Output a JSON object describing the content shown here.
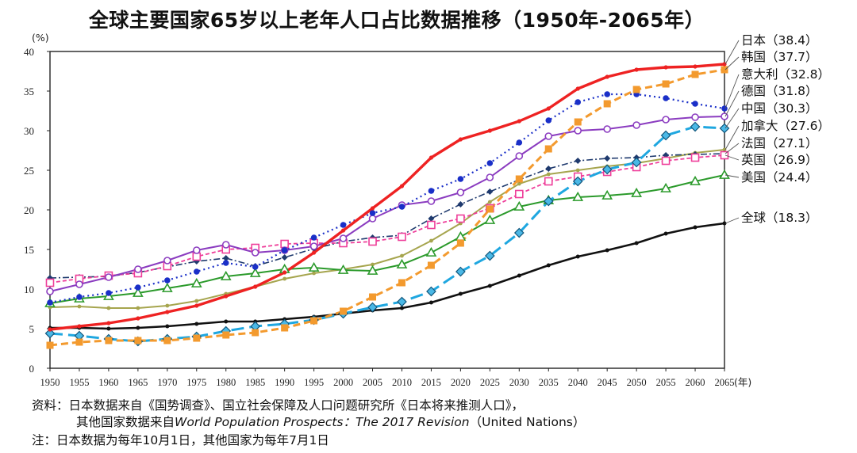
{
  "chart_data": {
    "type": "line",
    "title": "全球主要国家65岁以上老年人口占比数据推移（1950年-2065年）",
    "ylabel": "(%)",
    "xlabel": "(年)",
    "ylim": [
      0,
      40
    ],
    "yticks": [
      0,
      5,
      10,
      15,
      20,
      25,
      30,
      35,
      40
    ],
    "x": [
      1950,
      1955,
      1960,
      1965,
      1970,
      1975,
      1980,
      1985,
      1990,
      1995,
      2000,
      2005,
      2010,
      2015,
      2020,
      2025,
      2030,
      2035,
      2040,
      2045,
      2050,
      2055,
      2060,
      2065
    ],
    "series": [
      {
        "name": "日本",
        "label": "日本（38.4）",
        "color": "#ee2222",
        "values": [
          4.9,
          5.3,
          5.7,
          6.3,
          7.1,
          7.9,
          9.1,
          10.3,
          12.1,
          14.6,
          17.4,
          20.2,
          23.0,
          26.6,
          28.9,
          30.0,
          31.2,
          32.8,
          35.3,
          36.8,
          37.7,
          38.0,
          38.1,
          38.4
        ]
      },
      {
        "name": "韩国",
        "label": "韩国（37.7）",
        "color": "#f39a2e",
        "values": [
          2.9,
          3.3,
          3.5,
          3.5,
          3.5,
          3.8,
          4.2,
          4.5,
          5.1,
          6.0,
          7.2,
          9.0,
          10.8,
          13.0,
          15.8,
          20.1,
          23.9,
          27.7,
          31.1,
          33.4,
          35.2,
          35.9,
          37.1,
          37.7
        ]
      },
      {
        "name": "意大利",
        "label": "意大利（32.8）",
        "color": "#1a2fc8",
        "values": [
          8.3,
          9.0,
          9.5,
          10.2,
          11.1,
          12.2,
          13.3,
          12.8,
          14.9,
          16.5,
          18.1,
          19.6,
          20.4,
          22.4,
          23.9,
          25.9,
          28.5,
          31.3,
          33.6,
          34.6,
          34.6,
          34.1,
          33.4,
          32.8
        ]
      },
      {
        "name": "德国",
        "label": "德国（31.8）",
        "color": "#8b3cc0",
        "values": [
          9.7,
          10.6,
          11.5,
          12.5,
          13.6,
          14.9,
          15.6,
          14.6,
          14.9,
          15.4,
          16.4,
          18.9,
          20.6,
          21.1,
          22.2,
          24.1,
          26.8,
          29.3,
          30.0,
          30.2,
          30.7,
          31.4,
          31.7,
          31.8
        ]
      },
      {
        "name": "中国",
        "label": "中国（30.3）",
        "color": "#1fa7e0",
        "values": [
          4.4,
          4.1,
          3.7,
          3.4,
          3.7,
          4.0,
          4.7,
          5.3,
          5.6,
          6.1,
          6.9,
          7.7,
          8.4,
          9.7,
          12.2,
          14.2,
          17.1,
          21.1,
          23.6,
          25.1,
          26.0,
          29.4,
          30.5,
          30.3
        ]
      },
      {
        "name": "加拿大",
        "label": "加拿大（27.6）",
        "color": "#a6a54e",
        "values": [
          7.7,
          7.8,
          7.6,
          7.6,
          7.9,
          8.5,
          9.4,
          10.3,
          11.3,
          12.0,
          12.5,
          13.1,
          14.2,
          16.1,
          18.3,
          21.0,
          23.3,
          24.5,
          25.0,
          25.5,
          25.9,
          26.5,
          27.2,
          27.6
        ]
      },
      {
        "name": "法国",
        "label": "法国（27.1）",
        "color": "#1f3a6e",
        "values": [
          11.4,
          11.5,
          11.6,
          12.1,
          12.8,
          13.5,
          13.9,
          12.9,
          14.0,
          15.1,
          16.0,
          16.5,
          16.8,
          18.9,
          20.7,
          22.3,
          23.8,
          25.2,
          26.2,
          26.5,
          26.6,
          26.9,
          27.0,
          27.1
        ]
      },
      {
        "name": "英国",
        "label": "英国（26.9）",
        "color": "#ee3e9a",
        "values": [
          10.8,
          11.3,
          11.7,
          12.0,
          12.9,
          14.1,
          15.0,
          15.2,
          15.7,
          15.8,
          15.8,
          16.0,
          16.6,
          18.1,
          18.9,
          20.2,
          22.0,
          23.6,
          24.2,
          24.8,
          25.4,
          26.2,
          26.6,
          26.9
        ]
      },
      {
        "name": "美国",
        "label": "美国（24.4）",
        "color": "#2b9a2b",
        "values": [
          8.2,
          8.8,
          9.1,
          9.5,
          10.1,
          10.7,
          11.6,
          12.0,
          12.5,
          12.7,
          12.4,
          12.3,
          13.1,
          14.6,
          16.6,
          18.7,
          20.4,
          21.2,
          21.6,
          21.8,
          22.1,
          22.7,
          23.6,
          24.4
        ]
      },
      {
        "name": "全球",
        "label": "全球（18.3）",
        "color": "#111111",
        "values": [
          5.1,
          5.1,
          5.0,
          5.1,
          5.3,
          5.6,
          5.9,
          5.9,
          6.2,
          6.5,
          6.9,
          7.3,
          7.6,
          8.3,
          9.4,
          10.4,
          11.7,
          13.0,
          14.1,
          14.9,
          15.8,
          17.0,
          17.8,
          18.3
        ]
      }
    ]
  },
  "notes": {
    "line1": "资料：日本数据来自《国势调查》、国立社会保障及人口问题研究所《日本将来推测人口》，",
    "line2_prefix": "其他国家数据来自",
    "line2_italic": "World Population Prospects：The 2017 Revision",
    "line2_suffix": "（United Nations）",
    "line3": "注：日本数据为每年10月1日，其他国家为每年7月1日"
  }
}
